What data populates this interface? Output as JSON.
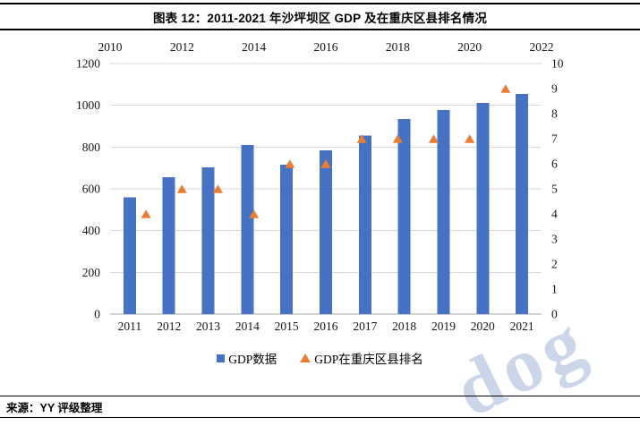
{
  "header": {
    "title": "图表 12：2011-2021 年沙坪坝区 GDP 及在重庆区县排名情况"
  },
  "source": {
    "label": "来源：YY 评级整理"
  },
  "watermark": {
    "text": "dog"
  },
  "chart_data": {
    "type": "bar+scatter combo",
    "title": "图表 12：2011-2021 年沙坪坝区 GDP 及在重庆区县排名情况",
    "categories": [
      "2011",
      "2012",
      "2013",
      "2014",
      "2015",
      "2016",
      "2017",
      "2018",
      "2019",
      "2020",
      "2021"
    ],
    "series": [
      {
        "name": "GDP数据",
        "type": "bar",
        "axis": "left",
        "color": "#4472C4",
        "values": [
          560,
          655,
          703,
          810,
          715,
          785,
          855,
          935,
          977,
          1012,
          1055
        ]
      },
      {
        "name": "GDP在重庆区县排名",
        "type": "scatter",
        "marker": "triangle",
        "axis": "right",
        "color": "#ED7D31",
        "values": [
          4,
          5,
          5,
          4,
          6,
          6,
          7,
          7,
          7,
          7,
          9
        ]
      }
    ],
    "left_axis": {
      "min": 0,
      "max": 1200,
      "ticks": [
        0,
        200,
        400,
        600,
        800,
        1000,
        1200
      ]
    },
    "right_axis": {
      "min": 0,
      "max": 10,
      "ticks": [
        0,
        1,
        2,
        3,
        4,
        5,
        6,
        7,
        8,
        9,
        10
      ]
    },
    "top_axis": {
      "min": 2010,
      "max": 2022,
      "ticks": [
        2010,
        2012,
        2014,
        2016,
        2018,
        2020,
        2022
      ]
    },
    "grid": "horizontal gridlines at left-axis ticks",
    "gridline_color": "#d9d9d9",
    "baseline_color": "#a6a6a6",
    "legend_position": "bottom"
  }
}
